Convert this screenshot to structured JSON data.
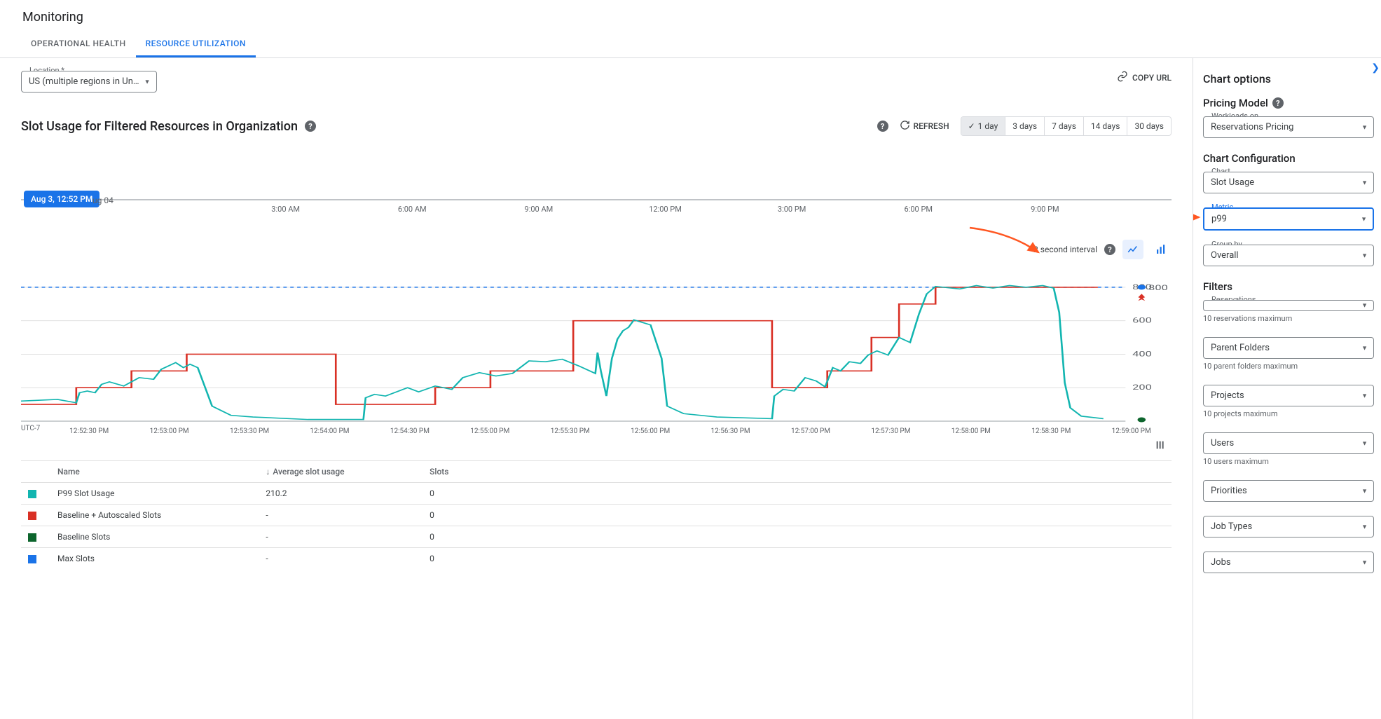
{
  "page_title": "Monitoring",
  "tabs": {
    "operational_health": "OPERATIONAL HEALTH",
    "resource_utilization": "RESOURCE UTILIZATION",
    "active_index": 1
  },
  "location": {
    "label": "Location *",
    "value": "US (multiple regions in Un…"
  },
  "copy_url_label": "COPY URL",
  "chart": {
    "title": "Slot Usage for Filtered Resources in Organization",
    "refresh_label": "REFRESH",
    "ranges": [
      "1 day",
      "3 days",
      "7 days",
      "14 days",
      "30 days"
    ],
    "active_range_index": 0,
    "interval_text": "2 second interval",
    "timeline": {
      "pill": "Aug 3, 12:52 PM",
      "aux": "ug 04",
      "ticks": [
        "3:00 AM",
        "6:00 AM",
        "9:00 AM",
        "12:00 PM",
        "3:00 PM",
        "6:00 PM",
        "9:00 PM"
      ]
    },
    "y_ticks": [
      200,
      400,
      600,
      800
    ],
    "y_max": 900,
    "x_axis_left": "UTC-7",
    "x_ticks": [
      "12:52:30 PM",
      "12:53:00 PM",
      "12:53:30 PM",
      "12:54:00 PM",
      "12:54:30 PM",
      "12:55:00 PM",
      "12:55:30 PM",
      "12:56:00 PM",
      "12:56:30 PM",
      "12:57:00 PM",
      "12:57:30 PM",
      "12:58:00 PM",
      "12:58:30 PM",
      "12:59:00 PM"
    ],
    "colors": {
      "p99_line": "#12b5b0",
      "baseline_line": "#d93025",
      "maxslots_line": "#1a73e8",
      "baseline_slots": "#0d652d",
      "grid": "#e0e0e0",
      "dotted": "#1a73e8"
    },
    "dotted_level": 800,
    "series_p99": [
      [
        0.0,
        120
      ],
      [
        0.033,
        130
      ],
      [
        0.05,
        110
      ],
      [
        0.053,
        170
      ],
      [
        0.06,
        180
      ],
      [
        0.067,
        170
      ],
      [
        0.073,
        220
      ],
      [
        0.08,
        235
      ],
      [
        0.093,
        210
      ],
      [
        0.107,
        260
      ],
      [
        0.12,
        250
      ],
      [
        0.127,
        310
      ],
      [
        0.14,
        350
      ],
      [
        0.147,
        320
      ],
      [
        0.153,
        340
      ],
      [
        0.16,
        320
      ],
      [
        0.173,
        90
      ],
      [
        0.19,
        35
      ],
      [
        0.21,
        25
      ],
      [
        0.26,
        10
      ],
      [
        0.31,
        10
      ],
      [
        0.312,
        140
      ],
      [
        0.32,
        160
      ],
      [
        0.33,
        150
      ],
      [
        0.35,
        200
      ],
      [
        0.36,
        175
      ],
      [
        0.375,
        210
      ],
      [
        0.39,
        190
      ],
      [
        0.4,
        260
      ],
      [
        0.415,
        290
      ],
      [
        0.43,
        270
      ],
      [
        0.445,
        285
      ],
      [
        0.46,
        360
      ],
      [
        0.475,
        355
      ],
      [
        0.49,
        370
      ],
      [
        0.505,
        330
      ],
      [
        0.52,
        285
      ],
      [
        0.522,
        410
      ],
      [
        0.525,
        300
      ],
      [
        0.53,
        150
      ],
      [
        0.535,
        375
      ],
      [
        0.537,
        420
      ],
      [
        0.54,
        490
      ],
      [
        0.545,
        540
      ],
      [
        0.55,
        560
      ],
      [
        0.555,
        605
      ],
      [
        0.56,
        595
      ],
      [
        0.57,
        575
      ],
      [
        0.58,
        375
      ],
      [
        0.585,
        90
      ],
      [
        0.6,
        45
      ],
      [
        0.63,
        25
      ],
      [
        0.68,
        15
      ],
      [
        0.682,
        150
      ],
      [
        0.69,
        190
      ],
      [
        0.7,
        180
      ],
      [
        0.71,
        260
      ],
      [
        0.72,
        240
      ],
      [
        0.728,
        205
      ],
      [
        0.735,
        320
      ],
      [
        0.742,
        300
      ],
      [
        0.75,
        355
      ],
      [
        0.76,
        345
      ],
      [
        0.767,
        395
      ],
      [
        0.775,
        420
      ],
      [
        0.785,
        395
      ],
      [
        0.795,
        500
      ],
      [
        0.805,
        470
      ],
      [
        0.813,
        640
      ],
      [
        0.82,
        760
      ],
      [
        0.828,
        805
      ],
      [
        0.835,
        800
      ],
      [
        0.85,
        790
      ],
      [
        0.865,
        810
      ],
      [
        0.88,
        795
      ],
      [
        0.895,
        810
      ],
      [
        0.91,
        800
      ],
      [
        0.925,
        810
      ],
      [
        0.935,
        795
      ],
      [
        0.94,
        650
      ],
      [
        0.945,
        230
      ],
      [
        0.95,
        80
      ],
      [
        0.96,
        30
      ],
      [
        0.98,
        15
      ]
    ],
    "series_baseline_autoscaled": [
      [
        0.0,
        100
      ],
      [
        0.05,
        100
      ],
      [
        0.05,
        200
      ],
      [
        0.1,
        200
      ],
      [
        0.1,
        300
      ],
      [
        0.15,
        300
      ],
      [
        0.15,
        400
      ],
      [
        0.285,
        400
      ],
      [
        0.285,
        100
      ],
      [
        0.375,
        100
      ],
      [
        0.375,
        200
      ],
      [
        0.425,
        200
      ],
      [
        0.425,
        300
      ],
      [
        0.5,
        300
      ],
      [
        0.5,
        600
      ],
      [
        0.68,
        600
      ],
      [
        0.68,
        200
      ],
      [
        0.73,
        200
      ],
      [
        0.73,
        300
      ],
      [
        0.77,
        300
      ],
      [
        0.77,
        500
      ],
      [
        0.795,
        500
      ],
      [
        0.795,
        700
      ],
      [
        0.828,
        700
      ],
      [
        0.828,
        800
      ],
      [
        0.975,
        800
      ]
    ]
  },
  "legend_table": {
    "columns": {
      "name": "Name",
      "avg": "Average slot usage",
      "slots": "Slots"
    },
    "rows": [
      {
        "name": "P99 Slot Usage",
        "avg": "210.2",
        "slots": "0",
        "color": "#12b5b0"
      },
      {
        "name": "Baseline + Autoscaled Slots",
        "avg": "-",
        "slots": "0",
        "color": "#d93025"
      },
      {
        "name": "Baseline Slots",
        "avg": "-",
        "slots": "0",
        "color": "#0d652d"
      },
      {
        "name": "Max Slots",
        "avg": "-",
        "slots": "0",
        "color": "#1a73e8"
      }
    ]
  },
  "sidebar": {
    "title": "Chart options",
    "pricing": {
      "heading": "Pricing Model",
      "label": "Workloads on",
      "value": "Reservations Pricing"
    },
    "config": {
      "heading": "Chart Configuration",
      "chart_label": "Chart",
      "chart_value": "Slot Usage",
      "metric_label": "Metric",
      "metric_value": "p99",
      "groupby_label": "Group by",
      "groupby_value": "Overall"
    },
    "filters": {
      "heading": "Filters",
      "reservations": {
        "label": "Reservations",
        "hint": "10 reservations maximum"
      },
      "parent_folders": {
        "label": "Parent Folders",
        "hint": "10 parent folders maximum"
      },
      "projects": {
        "label": "Projects",
        "hint": "10 projects maximum"
      },
      "users": {
        "label": "Users",
        "hint": "10 users maximum"
      },
      "priorities": {
        "label": "Priorities"
      },
      "job_types": {
        "label": "Job Types"
      },
      "jobs": {
        "label": "Jobs"
      }
    }
  }
}
